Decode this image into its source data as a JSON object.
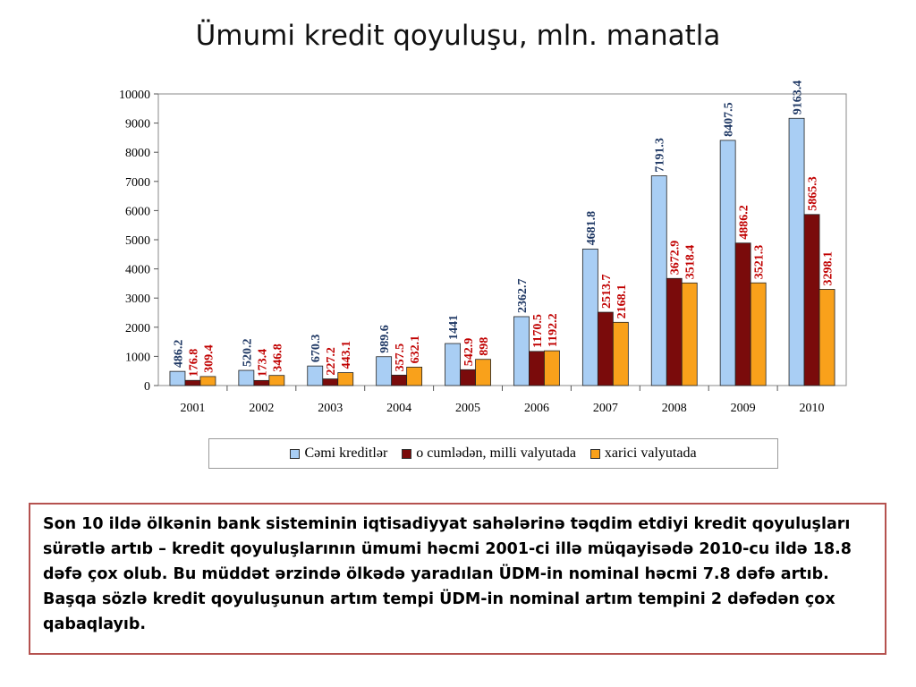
{
  "title": "Ümumi kredit qoyuluşu, mln. manatla",
  "chart_data": {
    "type": "bar",
    "categories": [
      "2001",
      "2002",
      "2003",
      "2004",
      "2005",
      "2006",
      "2007",
      "2008",
      "2009",
      "2010"
    ],
    "series": [
      {
        "name": "Cəmi kreditlər",
        "values": [
          486.2,
          520.2,
          670.3,
          989.6,
          1441,
          2362.7,
          4681.8,
          7191.3,
          8407.5,
          9163.4
        ],
        "labels": [
          "486.2",
          "520.2",
          "670.3",
          "989.6",
          "1441",
          "2362.7",
          "4681.8",
          "7191.3",
          "8407.5",
          "9163.4"
        ],
        "color": "#a9cef4",
        "label_color": "#1f3864"
      },
      {
        "name": "o cumlədən, milli valyutada",
        "values": [
          176.8,
          173.4,
          227.2,
          357.5,
          542.9,
          1170.5,
          2513.7,
          3672.9,
          4886.2,
          5865.3
        ],
        "labels": [
          "176.8",
          "173.4",
          "227.2",
          "357.5",
          "542.9",
          "1170.5",
          "2513.7",
          "3672.9",
          "4886.2",
          "5865.3"
        ],
        "color": "#7a0b0b",
        "label_color": "#c00000"
      },
      {
        "name": "xarici valyutada",
        "values": [
          309.4,
          346.8,
          443.1,
          632.1,
          898,
          1192.2,
          2168.1,
          3518.4,
          3521.3,
          3298.1
        ],
        "labels": [
          "309.4",
          "346.8",
          "443.1",
          "632.1",
          "898",
          "1192.2",
          "2168.1",
          "3518.4",
          "3521.3",
          "3298.1"
        ],
        "color": "#f9a11b",
        "label_color": "#c00000"
      }
    ],
    "ylim": [
      0,
      10000
    ],
    "yticks": [
      "0",
      "1000",
      "2000",
      "3000",
      "4000",
      "5000",
      "6000",
      "7000",
      "8000",
      "9000",
      "10000"
    ],
    "grid": false,
    "legend_position": "bottom"
  },
  "note": "Son 10 ildə ölkənin bank sisteminin iqtisadiyyat sahələrinə təqdim etdiyi kredit qoyuluşları sürətlə artıb – kredit qoyuluşlarının ümumi həcmi 2001-ci illə müqayisədə 2010-cu ildə 18.8 dəfə çox olub. Bu müddət ərzində ölkədə yaradılan ÜDM-in nominal həcmi 7.8 dəfə artıb. Başqa sözlə kredit qoyuluşunun artım tempi ÜDM-in nominal artım tempini 2 dəfədən çox qabaqlayıb."
}
